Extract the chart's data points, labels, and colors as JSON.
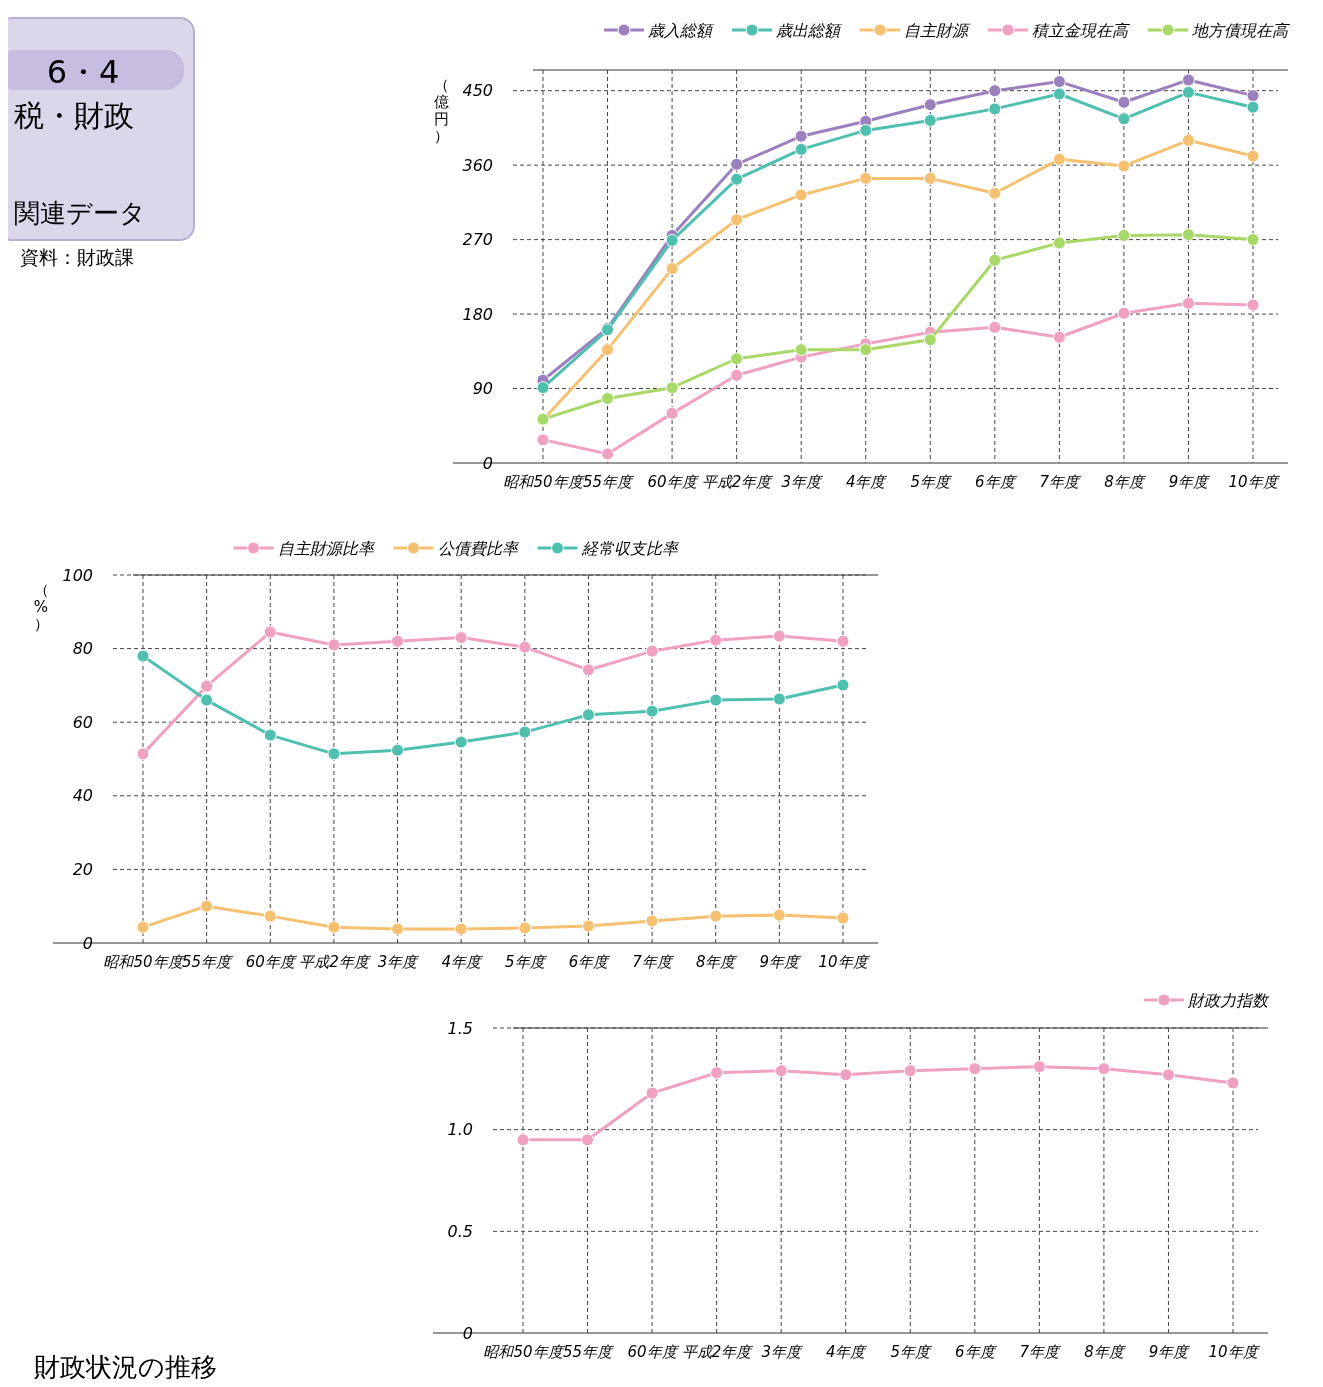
{
  "chart_data": [
    {
      "type": "line",
      "ylabel": "（億円）",
      "annotations": [
        "6・4",
        "税・財政",
        "関連データ",
        "資料：財政課"
      ],
      "categories": [
        "昭和50年度",
        "55年度",
        "60年度",
        "平成2年度",
        "3年度",
        "4年度",
        "5年度",
        "6年度",
        "7年度",
        "8年度",
        "9年度",
        "10年度"
      ],
      "series": [
        {
          "name": "歳入総額",
          "color": "#9b7fbf",
          "values": [
            100,
            163,
            275,
            361,
            395,
            413,
            433,
            450,
            461,
            436,
            463,
            444
          ]
        },
        {
          "name": "歳出総額",
          "color": "#4fbfb0",
          "values": [
            91,
            161,
            269,
            343,
            379,
            402,
            414,
            428,
            446,
            416,
            448,
            430
          ]
        },
        {
          "name": "自主財源",
          "color": "#f5c070",
          "values": [
            52,
            137,
            235,
            294,
            324,
            344,
            344,
            326,
            367,
            359,
            390,
            371
          ]
        },
        {
          "name": "積立金現在高",
          "color": "#f0a0c0",
          "values": [
            28,
            11,
            60,
            106,
            128,
            144,
            158,
            164,
            152,
            181,
            193,
            191
          ]
        },
        {
          "name": "地方債現在高",
          "color": "#a8d868",
          "values": [
            53,
            78,
            91,
            126,
            137,
            137,
            149,
            245,
            266,
            275,
            276,
            270
          ]
        }
      ],
      "ylim": [
        0,
        475
      ],
      "yticks": [
        0,
        90,
        180,
        270,
        360,
        450
      ],
      "grid": true,
      "legend": "top right",
      "marker": "circle",
      "line_style": "solid"
    },
    {
      "type": "line",
      "title": "財政状況の推移",
      "ylabel": "（%）",
      "categories": [
        "昭和50年度",
        "55年度",
        "60年度",
        "平成2年度",
        "3年度",
        "4年度",
        "5年度",
        "6年度",
        "7年度",
        "8年度",
        "9年度",
        "10年度"
      ],
      "series": [
        {
          "name": "自主財源比率",
          "color": "#f0a0c0",
          "values": [
            51.4,
            69.8,
            84.5,
            81,
            82,
            83,
            80.4,
            74.2,
            79.3,
            82.3,
            83.4,
            82
          ]
        },
        {
          "name": "公債費比率",
          "color": "#f5c070",
          "values": [
            4.3,
            10,
            7.3,
            4.3,
            3.8,
            3.8,
            4.1,
            4.6,
            6,
            7.3,
            7.6,
            6.8
          ]
        },
        {
          "name": "経常収支比率",
          "color": "#4fbfb0",
          "values": [
            78,
            66,
            56.5,
            51.4,
            52.4,
            54.6,
            57.3,
            62,
            63,
            66,
            66.3,
            70.1
          ]
        }
      ],
      "ylim": [
        0,
        100
      ],
      "yticks": [
        0,
        20,
        40,
        60,
        80,
        100
      ],
      "grid": true,
      "legend": "top",
      "marker": "circle",
      "line_style": "solid"
    },
    {
      "type": "line",
      "categories": [
        "昭和50年度",
        "55年度",
        "60年度",
        "平成2年度",
        "3年度",
        "4年度",
        "5年度",
        "6年度",
        "7年度",
        "8年度",
        "9年度",
        "10年度"
      ],
      "series": [
        {
          "name": "財政力指数",
          "color": "#f0a0c0",
          "values": [
            0.95,
            0.95,
            1.18,
            1.28,
            1.29,
            1.27,
            1.29,
            1.3,
            1.31,
            1.3,
            1.27,
            1.23
          ]
        }
      ],
      "ylim": [
        0,
        1.5
      ],
      "yticks": [
        0,
        {
          "value": 0.5,
          "label": "0.5"
        },
        {
          "value": 1,
          "label": "1.0"
        },
        1.5
      ],
      "grid": true,
      "legend": "top right",
      "marker": "circle",
      "line_style": "solid"
    }
  ]
}
